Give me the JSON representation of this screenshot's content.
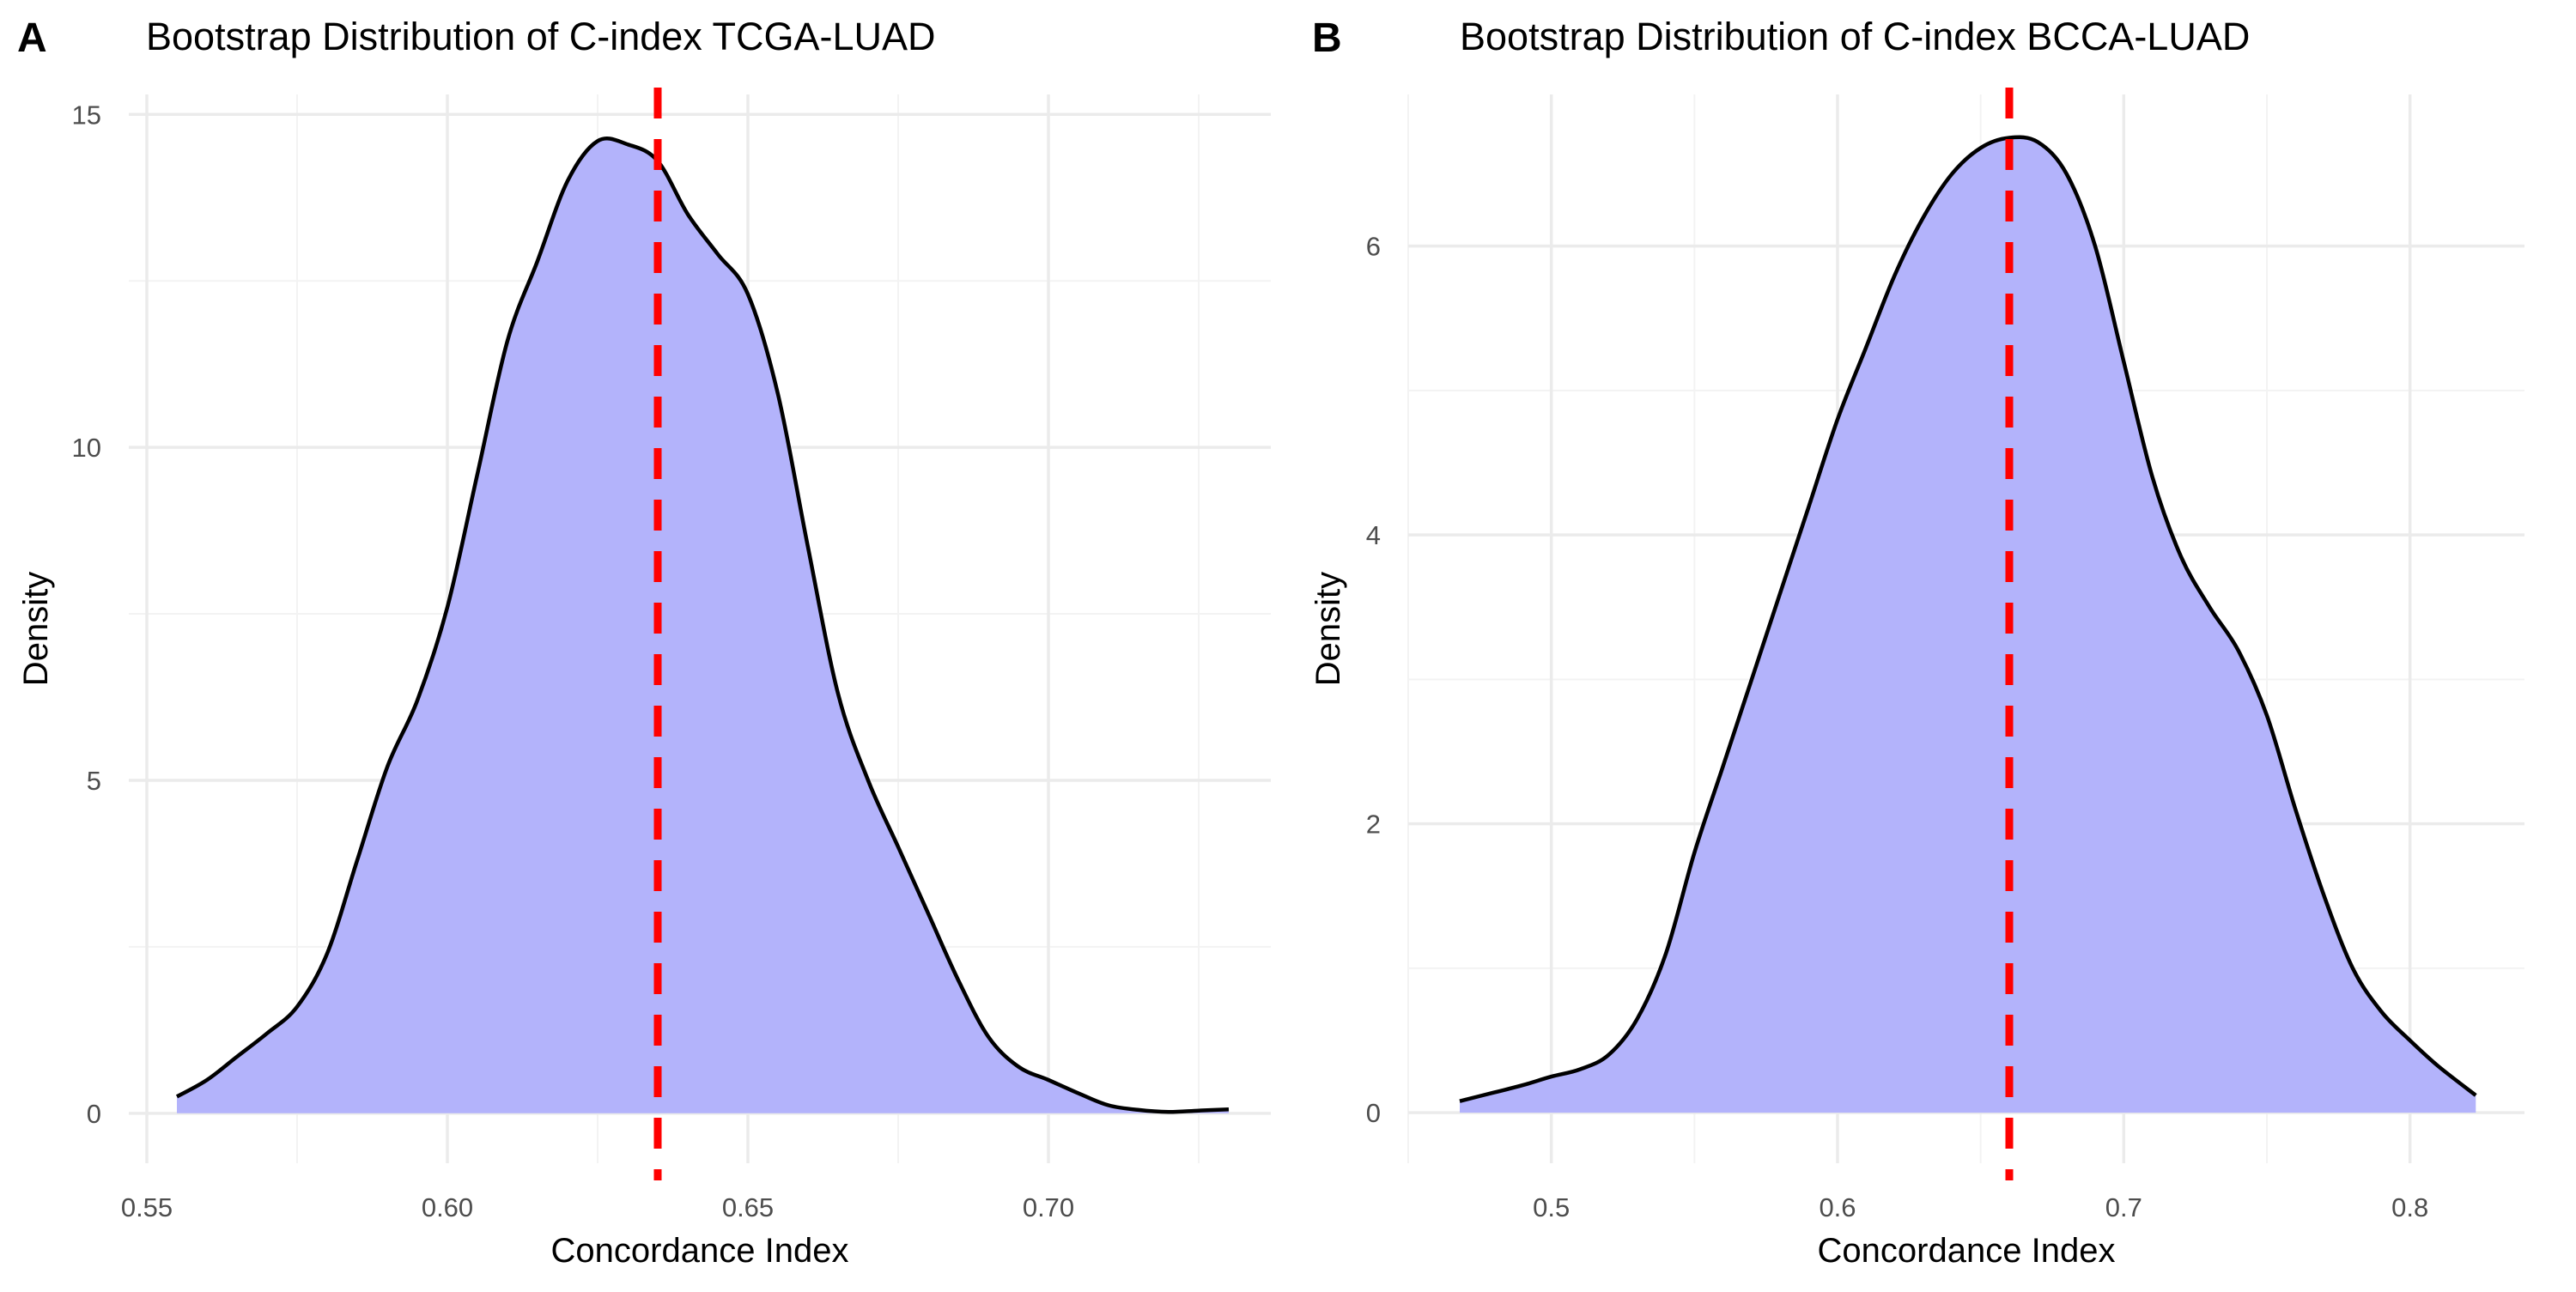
{
  "chart_data": [
    {
      "panel_label": "A",
      "type": "area",
      "title": "Bootstrap Distribution of C-index TCGA-LUAD",
      "xlabel": "Concordance Index",
      "ylabel": "Density",
      "xlim": [
        0.547,
        0.737
      ],
      "ylim": [
        -0.75,
        15.3
      ],
      "x_ticks": [
        0.55,
        0.6,
        0.65,
        0.7
      ],
      "x_tick_labels": [
        "0.55",
        "0.60",
        "0.65",
        "0.70"
      ],
      "y_ticks": [
        0,
        5,
        10,
        15
      ],
      "y_tick_labels": [
        "0",
        "5",
        "10",
        "15"
      ],
      "grid": true,
      "fill_color": "#b3b3fb",
      "line_color": "#000000",
      "reference_line": {
        "x": 0.635,
        "color": "#ff0000",
        "style": "dashed"
      },
      "x": [
        0.555,
        0.56,
        0.565,
        0.57,
        0.575,
        0.58,
        0.585,
        0.59,
        0.595,
        0.6,
        0.605,
        0.61,
        0.615,
        0.62,
        0.625,
        0.63,
        0.635,
        0.64,
        0.645,
        0.65,
        0.655,
        0.66,
        0.665,
        0.67,
        0.675,
        0.68,
        0.685,
        0.69,
        0.695,
        0.7,
        0.705,
        0.71,
        0.715,
        0.72,
        0.725,
        0.73
      ],
      "y": [
        0.25,
        0.5,
        0.85,
        1.2,
        1.6,
        2.4,
        3.8,
        5.2,
        6.2,
        7.6,
        9.6,
        11.6,
        12.8,
        14.0,
        14.6,
        14.55,
        14.3,
        13.5,
        12.9,
        12.3,
        10.8,
        8.5,
        6.3,
        5.0,
        4.0,
        3.0,
        2.0,
        1.15,
        0.7,
        0.5,
        0.3,
        0.12,
        0.05,
        0.02,
        0.04,
        0.06
      ]
    },
    {
      "panel_label": "B",
      "type": "area",
      "title": "Bootstrap Distribution of C-index BCCA-LUAD",
      "xlabel": "Concordance Index",
      "ylabel": "Density",
      "xlim": [
        0.45,
        0.84
      ],
      "ylim": [
        -0.35,
        7.05
      ],
      "x_ticks": [
        0.5,
        0.6,
        0.7,
        0.8
      ],
      "x_tick_labels": [
        "0.5",
        "0.6",
        "0.7",
        "0.8"
      ],
      "y_ticks": [
        0,
        2,
        4,
        6
      ],
      "y_tick_labels": [
        "0",
        "2",
        "4",
        "6"
      ],
      "grid": true,
      "fill_color": "#b3b3fb",
      "line_color": "#000000",
      "reference_line": {
        "x": 0.66,
        "color": "#ff0000",
        "style": "dashed"
      },
      "x": [
        0.468,
        0.48,
        0.49,
        0.5,
        0.51,
        0.52,
        0.53,
        0.54,
        0.55,
        0.56,
        0.57,
        0.58,
        0.59,
        0.6,
        0.61,
        0.62,
        0.63,
        0.64,
        0.65,
        0.66,
        0.67,
        0.68,
        0.69,
        0.7,
        0.71,
        0.72,
        0.73,
        0.74,
        0.75,
        0.76,
        0.77,
        0.78,
        0.79,
        0.8,
        0.81,
        0.823
      ],
      "y": [
        0.08,
        0.14,
        0.19,
        0.25,
        0.3,
        0.4,
        0.65,
        1.1,
        1.8,
        2.4,
        3.0,
        3.6,
        4.2,
        4.8,
        5.3,
        5.8,
        6.2,
        6.5,
        6.68,
        6.75,
        6.72,
        6.5,
        6.0,
        5.2,
        4.4,
        3.85,
        3.5,
        3.2,
        2.75,
        2.1,
        1.5,
        1.0,
        0.7,
        0.5,
        0.32,
        0.12
      ]
    }
  ]
}
